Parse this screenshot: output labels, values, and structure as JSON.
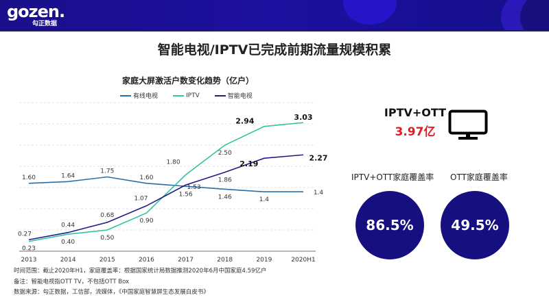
{
  "header": {
    "logo_text": "gozen.",
    "logo_subtext": "勾正数据"
  },
  "page_title": "智能电视/IPTV已完成前期流量规模积累",
  "stats": {
    "total_label": "IPTV+OTT",
    "total_value": "3.97亿",
    "tv_icon": "monitor-icon",
    "coverage": [
      {
        "label": "IPTV+OTT家庭覆盖率",
        "value": "86.5%"
      },
      {
        "label": "OTT家庭覆盖率",
        "value": "49.5%"
      }
    ]
  },
  "notes": [
    "时间范围：截止2020年H1，家庭覆盖率：根据国家统计局数据推测2020年6月中国家庭4.59亿户",
    "备注：智能电视指OTT TV，不包括OTT Box",
    "数据来源：勾正数据，工信部，流媒体，《中国家庭智慧屏生态发展白皮书》"
  ],
  "chart_data": {
    "type": "line",
    "title": "家庭大屏激活户数变化趋势（亿户）",
    "xlabel": "",
    "ylabel": "",
    "categories": [
      "2013",
      "2014",
      "2015",
      "2016",
      "2017",
      "2018",
      "2019",
      "2020H1"
    ],
    "ylim": [
      0,
      3.5
    ],
    "grid": true,
    "legend_position": "top-left",
    "series": [
      {
        "name": "有线电视",
        "color": "#2a6ea8",
        "values": [
          1.6,
          1.64,
          1.75,
          1.6,
          1.53,
          1.46,
          1.4,
          1.4
        ],
        "labels": [
          "1.60",
          "1.64",
          "1.75",
          "1.60",
          "1.53",
          "1.46",
          "1.4",
          "1.4"
        ]
      },
      {
        "name": "IPTV",
        "color": "#2ec4a0",
        "values": [
          0.23,
          0.4,
          0.5,
          0.9,
          1.8,
          2.5,
          2.94,
          3.03
        ],
        "labels": [
          "0.23",
          "0.40",
          "0.50",
          "0.90",
          "1.80",
          "2.50",
          "2.94",
          "3.03"
        ]
      },
      {
        "name": "智能电视",
        "color": "#1e1d86",
        "values": [
          0.27,
          0.44,
          0.68,
          1.07,
          1.56,
          1.86,
          2.19,
          2.27
        ],
        "labels": [
          "0.27",
          "0.44",
          "0.68",
          "1.07",
          "1.56",
          "1.86",
          "2.19",
          "2.27"
        ]
      }
    ]
  }
}
